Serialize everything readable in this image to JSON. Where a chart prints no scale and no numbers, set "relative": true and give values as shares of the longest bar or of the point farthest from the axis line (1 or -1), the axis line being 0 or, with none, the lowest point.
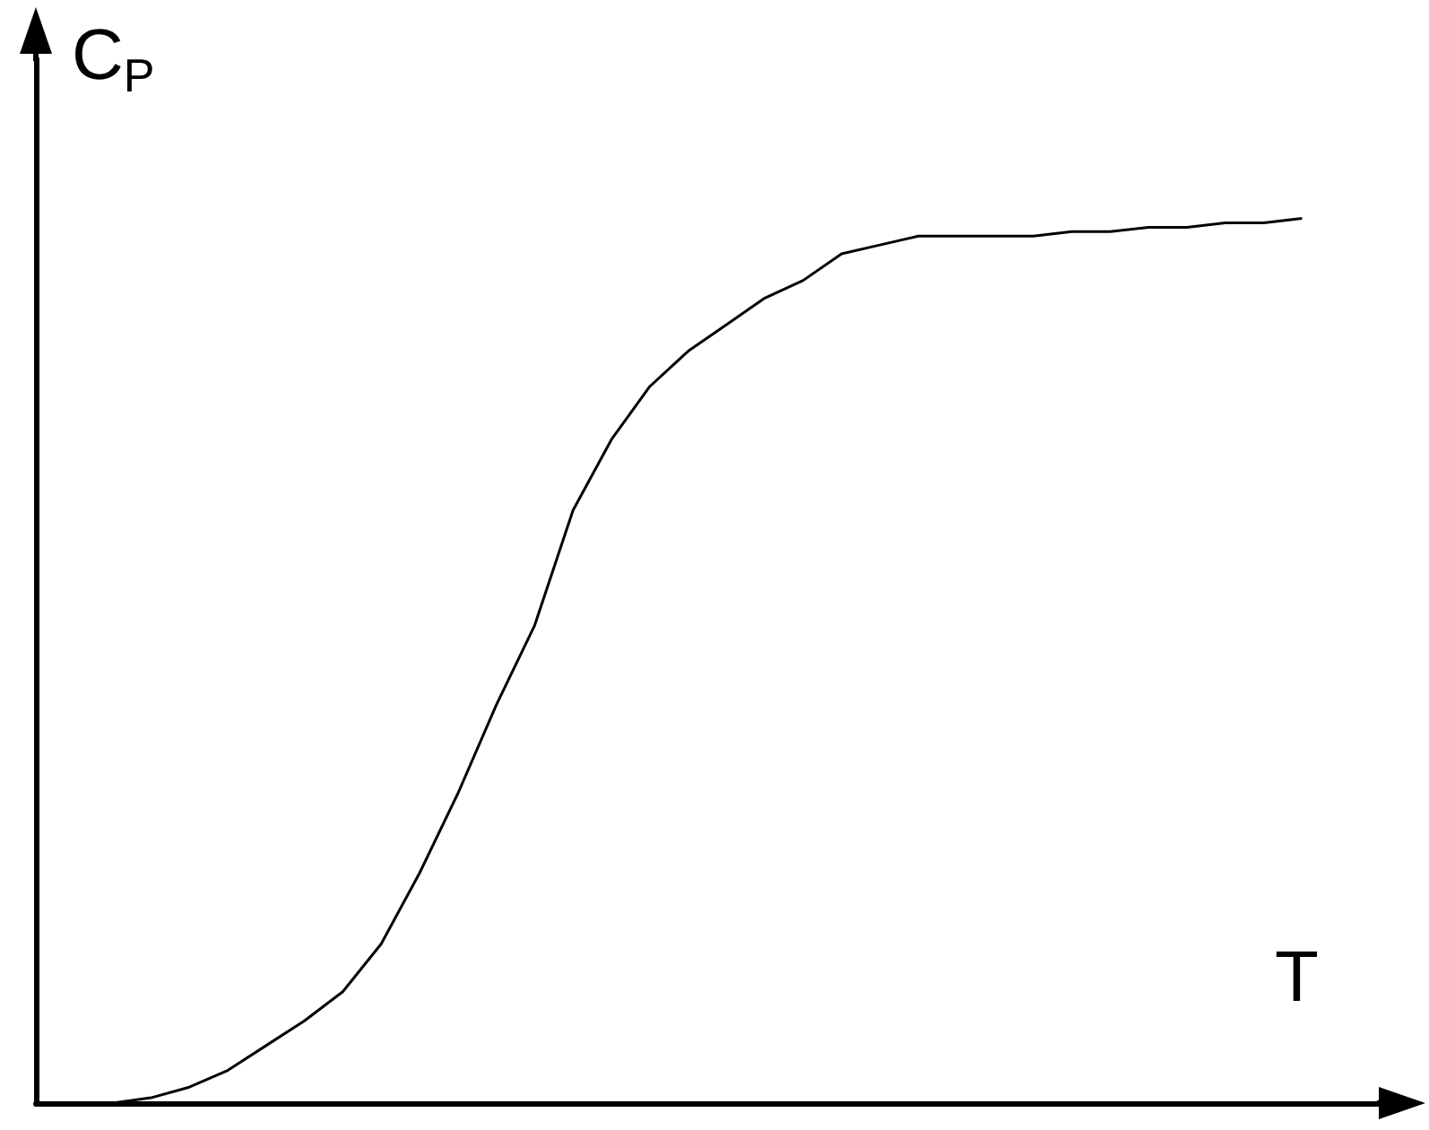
{
  "chart_data": {
    "type": "line",
    "relative": true,
    "xlabel": "T",
    "ylabel": "C$_{P}$",
    "categories": [
      null,
      null,
      null,
      null,
      null,
      null,
      null,
      null,
      null,
      null,
      null,
      null,
      null,
      null,
      null,
      null,
      null,
      null,
      null,
      null,
      null,
      null,
      null,
      null,
      null,
      null,
      null,
      null,
      null,
      null,
      null,
      null,
      null,
      null,
      null,
      null
    ],
    "series": [
      {
        "color": "#000000",
        "values": [
          null,
          null,
          0,
          0.006,
          0.018,
          0.037,
          0.065,
          0.093,
          0.126,
          0.18,
          0.26,
          0.35,
          0.45,
          0.54,
          0.67,
          0.75,
          0.81,
          0.85,
          0.88,
          0.91,
          0.93,
          0.96,
          0.97,
          0.98,
          0.98,
          0.98,
          0.98,
          0.985,
          0.985,
          0.99,
          0.99,
          0.995,
          0.995,
          1,
          null,
          null
        ]
      }
    ]
  }
}
